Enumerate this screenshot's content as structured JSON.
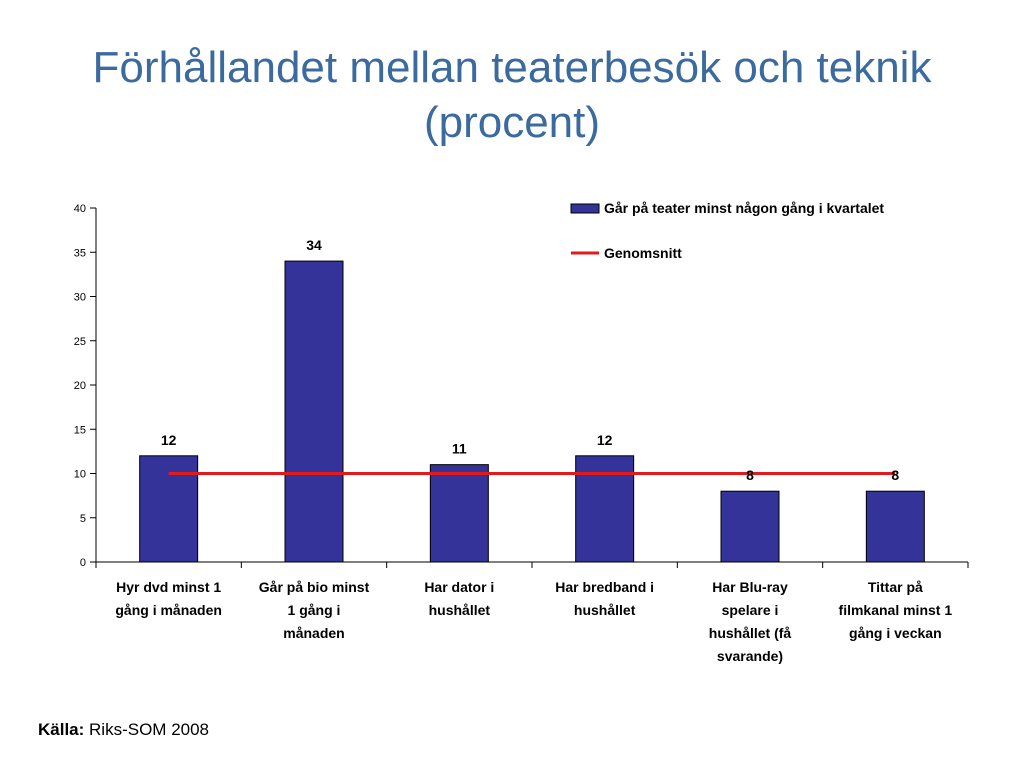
{
  "title": {
    "line1": "Förhållandet mellan teaterbesök och teknik",
    "line2": "(procent)"
  },
  "source": {
    "label": "Källa:",
    "text": "Riks-SOM 2008"
  },
  "chart_data": {
    "type": "bar",
    "categories": [
      [
        "Hyr dvd minst 1",
        "gång i månaden"
      ],
      [
        "Går på bio minst",
        "1 gång i",
        "månaden"
      ],
      [
        "Har dator i",
        "hushållet"
      ],
      [
        "Har bredband i",
        "hushållet"
      ],
      [
        "Har Blu-ray",
        "spelare i",
        "hushållet (få",
        "svarande)"
      ],
      [
        "Tittar på",
        "filmkanal minst 1",
        "gång i veckan"
      ]
    ],
    "series": [
      {
        "name": "Går på teater minst någon gång i kvartalet",
        "values": [
          12,
          34,
          11,
          12,
          8,
          8
        ],
        "color": "#333399"
      },
      {
        "name": "Genomsnitt",
        "values": [
          10,
          10,
          10,
          10,
          10,
          10
        ],
        "color": "#e31a1c",
        "kind": "line"
      }
    ],
    "data_labels": [
      "12",
      "34",
      "11",
      "12",
      "8",
      "8"
    ],
    "ylim": [
      0,
      40
    ],
    "yticks": [
      0,
      5,
      10,
      15,
      20,
      25,
      30,
      35,
      40
    ],
    "legend_position": "top-right",
    "grid": false,
    "xlabel": "",
    "ylabel": ""
  }
}
